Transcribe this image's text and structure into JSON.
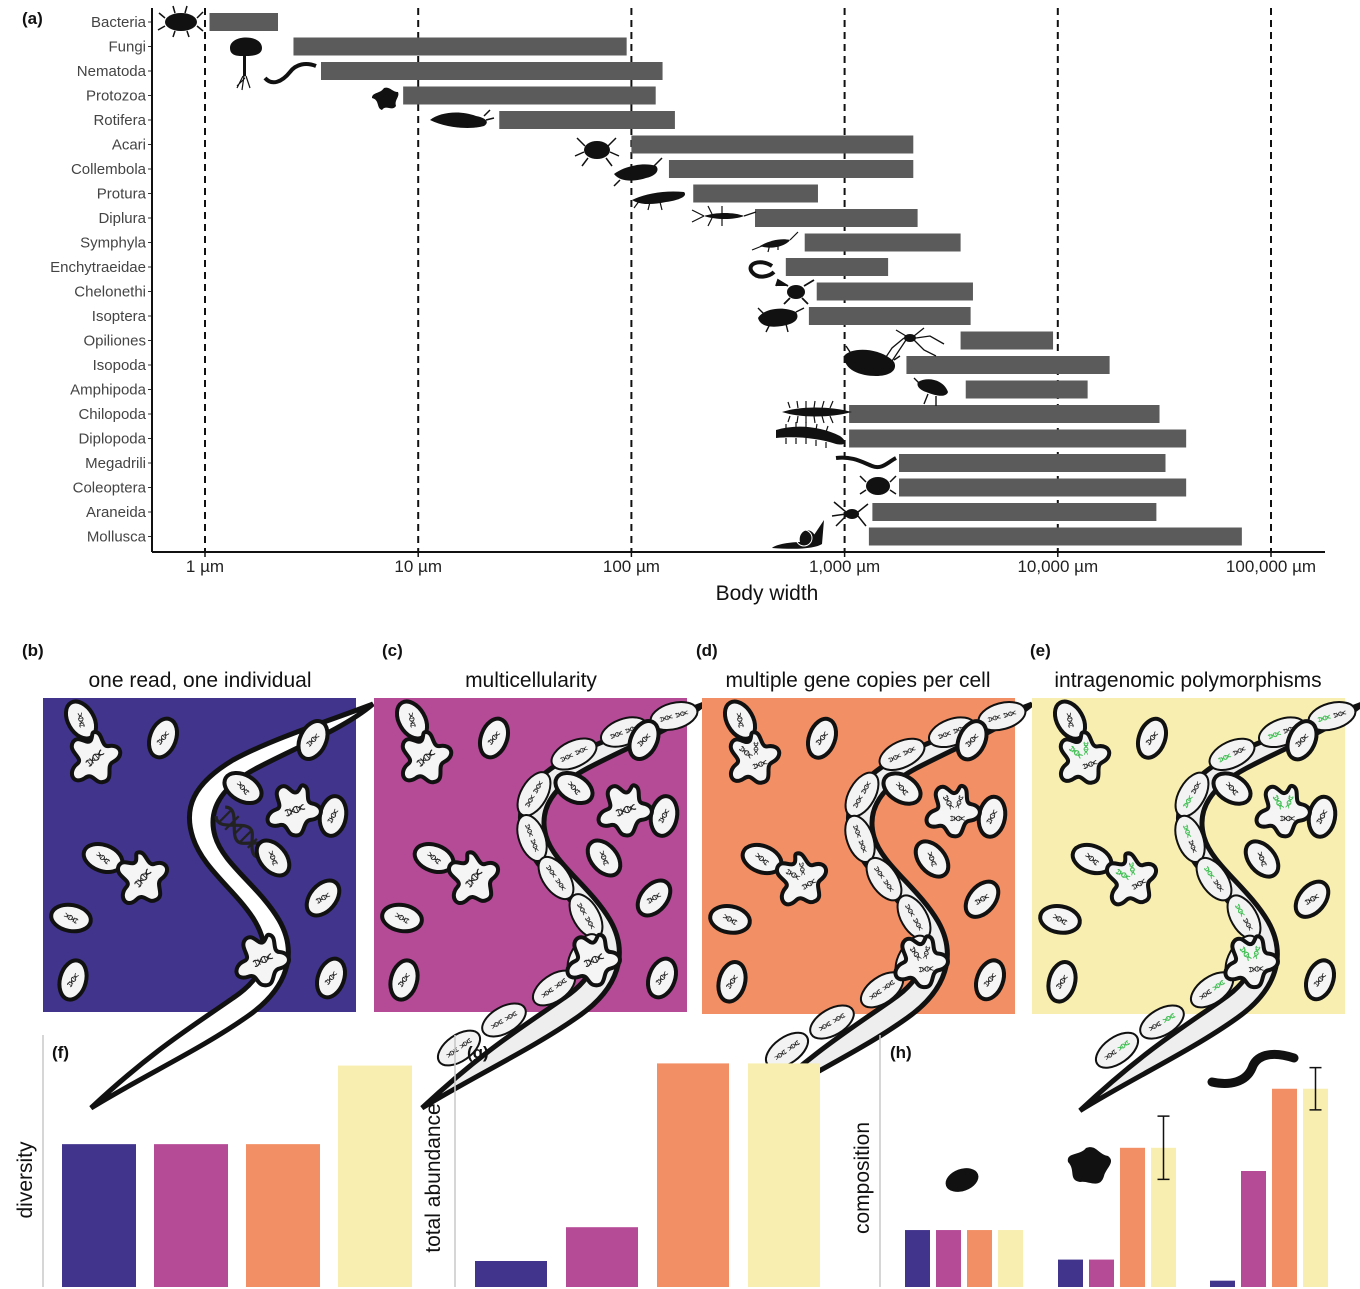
{
  "colors": {
    "bar_gray": "#5b5b5b",
    "one_read": "#41348c",
    "multicellularity": "#b54a97",
    "gene_copies": "#f28f64",
    "polymorphisms": "#f8eeb0",
    "dna_green": "#3fbf52"
  },
  "panel_labels": {
    "a": "(a)",
    "b": "(b)",
    "c": "(c)",
    "d": "(d)",
    "e": "(e)",
    "f": "(f)",
    "g": "(g)",
    "h": "(h)"
  },
  "scenarios": [
    {
      "label": "one read, one individual",
      "color_key": "one_read"
    },
    {
      "label": "multicellularity",
      "color_key": "multicellularity"
    },
    {
      "label": "multiple gene copies per cell",
      "color_key": "gene_copies"
    },
    {
      "label": "intragenomic polymorphisms",
      "color_key": "polymorphisms"
    }
  ],
  "icons": [
    "bacteria-icon",
    "mushroom-icon",
    "nematode-icon",
    "amoeba-icon",
    "rotifer-icon",
    "mite-icon",
    "springtail-icon",
    "protura-icon",
    "diplura-icon",
    "symphyla-icon",
    "enchytraeid-icon",
    "pseudoscorpion-icon",
    "termite-icon",
    "harvestman-icon",
    "isopod-icon",
    "amphipod-icon",
    "centipede-icon",
    "millipede-icon",
    "earthworm-icon",
    "beetle-icon",
    "spider-icon",
    "snail-icon"
  ],
  "chart_data": [
    {
      "type": "bar",
      "orientation": "horizontal-range",
      "xscale": "log",
      "xlabel": "Body width",
      "xticks": [
        "1 µm",
        "10 µm",
        "100 µm",
        "1,000 µm",
        "10,000 µm",
        "100,000 µm"
      ],
      "xtick_values": [
        1,
        10,
        100,
        1000,
        10000,
        100000
      ],
      "xlim": [
        0.25,
        250000
      ],
      "reference_lines": [
        1,
        10,
        100,
        1000,
        10000,
        100000
      ],
      "categories": [
        "Bacteria",
        "Fungi",
        "Nematoda",
        "Protozoa",
        "Rotifera",
        "Acari",
        "Collembola",
        "Protura",
        "Diplura",
        "Symphyla",
        "Enchytraeidae",
        "Chelonethi",
        "Isoptera",
        "Opiliones",
        "Isopoda",
        "Amphipoda",
        "Chilopoda",
        "Diplopoda",
        "Megadrili",
        "Coleoptera",
        "Araneida",
        "Mollusca"
      ],
      "ranges": [
        [
          1.05,
          2.2
        ],
        [
          2.6,
          95
        ],
        [
          3.5,
          140
        ],
        [
          8.5,
          130
        ],
        [
          24,
          160
        ],
        [
          100,
          2100
        ],
        [
          150,
          2100
        ],
        [
          195,
          750
        ],
        [
          380,
          2200
        ],
        [
          650,
          3500
        ],
        [
          530,
          1600
        ],
        [
          740,
          4000
        ],
        [
          680,
          3900
        ],
        [
          3500,
          9500
        ],
        [
          1950,
          17500
        ],
        [
          3700,
          13800
        ],
        [
          1050,
          30000
        ],
        [
          1050,
          40000
        ],
        [
          1800,
          32000
        ],
        [
          1800,
          40000
        ],
        [
          1350,
          29000
        ],
        [
          1300,
          73000
        ]
      ]
    },
    {
      "type": "bar",
      "ylabel": "diversity",
      "categories": [
        "one read, one individual",
        "multicellularity",
        "multiple gene copies per cell",
        "intragenomic polymorphisms"
      ],
      "values": [
        1,
        1,
        1,
        1.55
      ],
      "ylim": [
        0,
        1.75
      ]
    },
    {
      "type": "bar",
      "ylabel": "total abundance",
      "categories": [
        "one read, one individual",
        "multicellularity",
        "multiple gene copies per cell",
        "intragenomic polymorphisms"
      ],
      "values": [
        1,
        2.3,
        8.6,
        8.6
      ],
      "ylim": [
        0,
        9.0
      ]
    },
    {
      "type": "bar",
      "ylabel": "composition",
      "groups": [
        "bacteria-icon",
        "amoeba-icon",
        "nematode-icon"
      ],
      "series": [
        {
          "values": [
            0.27,
            0.13,
            0.03
          ],
          "color_key": "one_read"
        },
        {
          "values": [
            0.27,
            0.13,
            0.55
          ],
          "color_key": "multicellularity"
        },
        {
          "values": [
            0.27,
            0.66,
            0.94
          ],
          "color_key": "gene_copies"
        },
        {
          "values": [
            0.27,
            0.66,
            0.94
          ],
          "color_key": "polymorphisms",
          "error": [
            0,
            0.15,
            0.1
          ]
        }
      ],
      "ylim": [
        0,
        1.1
      ]
    }
  ]
}
